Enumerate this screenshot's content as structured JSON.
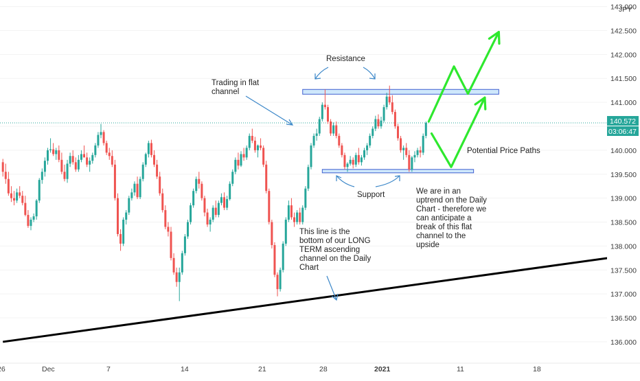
{
  "chart_data": {
    "type": "candlestick",
    "currency": "JPY",
    "y_ticks": [
      143.0,
      142.5,
      142.0,
      141.5,
      141.0,
      140.5,
      140.0,
      139.5,
      139.0,
      138.5,
      138.0,
      137.5,
      137.0,
      136.5,
      136.0
    ],
    "y_tick_labels": [
      "143.000",
      "142.500",
      "142.000",
      "141.500",
      "141.000",
      "",
      "140.000",
      "139.500",
      "139.000",
      "138.500",
      "138.000",
      "137.500",
      "137.000",
      "136.500",
      "136.000"
    ],
    "ylim": [
      135.87,
      143.08
    ],
    "x_ticks": [
      "26",
      "Dec",
      "7",
      "14",
      "21",
      "28",
      "2021",
      "11",
      "18"
    ],
    "current_price": "140.572",
    "countdown": "03:06:47",
    "colors": {
      "up": "#26a69a",
      "down": "#ef5350",
      "annotation_lines": "#3a86c8",
      "projection": "#2ee82e",
      "trendline": "#000000",
      "zone_fill": "#cfe8fb",
      "zone_border": "#3f5fd0"
    },
    "trendline": {
      "start": {
        "bar": 0,
        "price": 136.0
      },
      "end": {
        "bar": 216,
        "price": 137.75
      }
    },
    "resistance_zone": {
      "bar_from": 107,
      "bar_to": 177,
      "price_low": 141.17,
      "price_high": 141.27
    },
    "support_zone": {
      "bar_from": 114,
      "bar_to": 168,
      "price_low": 139.53,
      "price_high": 139.6
    },
    "projection_paths": [
      [
        {
          "bar": 152,
          "price": 140.6
        },
        {
          "bar": 161,
          "price": 141.75
        },
        {
          "bar": 166,
          "price": 141.18
        },
        {
          "bar": 177,
          "price": 142.47
        }
      ],
      [
        {
          "bar": 153,
          "price": 140.35
        },
        {
          "bar": 160,
          "price": 139.65
        },
        {
          "bar": 172,
          "price": 141.1
        }
      ]
    ],
    "annotations": {
      "resistance": "Resistance",
      "flat_channel": [
        "Trading in flat",
        "channel"
      ],
      "support": "Support",
      "potential_paths": "Potential Price Paths",
      "uptrend_note": [
        "We are in an",
        "uptrend on the Daily",
        "Chart - therefore we",
        "can anticipate a",
        "break of this flat",
        "channel to the",
        "upside"
      ],
      "bottom_note": [
        "This line is the",
        "bottom of our LONG",
        "TERM ascending",
        "channel on the Daily",
        "Chart"
      ]
    },
    "candles_ohlc": [
      [
        139.75,
        139.82,
        139.45,
        139.55
      ],
      [
        139.55,
        139.72,
        139.3,
        139.4
      ],
      [
        139.4,
        139.55,
        139.05,
        139.1
      ],
      [
        139.1,
        139.25,
        138.92,
        139.0
      ],
      [
        139.0,
        139.15,
        138.85,
        138.95
      ],
      [
        138.95,
        139.2,
        138.9,
        139.12
      ],
      [
        139.12,
        139.25,
        139.0,
        139.05
      ],
      [
        139.05,
        139.15,
        138.85,
        138.9
      ],
      [
        138.9,
        139.05,
        138.62,
        138.65
      ],
      [
        138.65,
        138.75,
        138.38,
        138.42
      ],
      [
        138.42,
        138.6,
        138.33,
        138.55
      ],
      [
        138.55,
        138.68,
        138.5,
        138.62
      ],
      [
        138.62,
        138.98,
        138.55,
        138.95
      ],
      [
        138.95,
        139.42,
        138.9,
        139.38
      ],
      [
        139.38,
        139.62,
        139.3,
        139.55
      ],
      [
        139.55,
        139.85,
        139.45,
        139.78
      ],
      [
        139.78,
        140.05,
        139.7,
        140.0
      ],
      [
        140.0,
        140.25,
        139.95,
        140.02
      ],
      [
        140.02,
        140.15,
        139.88,
        139.92
      ],
      [
        139.92,
        140.05,
        139.8,
        140.0
      ],
      [
        140.0,
        140.1,
        139.75,
        139.8
      ],
      [
        139.8,
        139.95,
        139.5,
        139.55
      ],
      [
        139.55,
        139.7,
        139.35,
        139.4
      ],
      [
        139.4,
        139.8,
        139.32,
        139.72
      ],
      [
        139.72,
        139.95,
        139.65,
        139.88
      ],
      [
        139.88,
        140.0,
        139.7,
        139.75
      ],
      [
        139.75,
        139.85,
        139.55,
        139.6
      ],
      [
        139.6,
        139.9,
        139.55,
        139.8
      ],
      [
        139.8,
        140.0,
        139.75,
        139.92
      ],
      [
        139.92,
        140.1,
        139.85,
        139.85
      ],
      [
        139.85,
        139.95,
        139.65,
        139.7
      ],
      [
        139.7,
        139.85,
        139.55,
        139.78
      ],
      [
        139.78,
        139.95,
        139.72,
        139.9
      ],
      [
        139.9,
        140.15,
        139.85,
        140.1
      ],
      [
        140.1,
        140.38,
        140.05,
        140.32
      ],
      [
        140.32,
        140.55,
        140.25,
        140.38
      ],
      [
        140.38,
        140.42,
        140.1,
        140.15
      ],
      [
        140.15,
        140.2,
        139.9,
        139.95
      ],
      [
        139.95,
        140.05,
        139.8,
        139.88
      ],
      [
        139.88,
        140.0,
        139.65,
        139.7
      ],
      [
        139.7,
        139.8,
        138.95,
        139.0
      ],
      [
        139.0,
        139.1,
        138.2,
        138.25
      ],
      [
        138.25,
        138.35,
        137.9,
        138.05
      ],
      [
        138.05,
        138.6,
        138.0,
        138.55
      ],
      [
        138.55,
        138.75,
        138.45,
        138.7
      ],
      [
        138.7,
        139.05,
        138.65,
        139.0
      ],
      [
        139.0,
        139.2,
        138.95,
        139.12
      ],
      [
        139.12,
        139.35,
        139.05,
        139.3
      ],
      [
        139.3,
        139.45,
        138.98,
        139.02
      ],
      [
        139.02,
        139.45,
        138.98,
        139.4
      ],
      [
        139.4,
        139.75,
        139.35,
        139.7
      ],
      [
        139.7,
        139.95,
        139.65,
        139.92
      ],
      [
        139.92,
        140.2,
        139.85,
        140.15
      ],
      [
        140.15,
        140.22,
        139.85,
        139.9
      ],
      [
        139.9,
        140.0,
        139.65,
        139.7
      ],
      [
        139.7,
        139.8,
        139.4,
        139.45
      ],
      [
        139.45,
        139.55,
        139.05,
        139.1
      ],
      [
        139.1,
        139.2,
        138.7,
        138.75
      ],
      [
        138.75,
        138.85,
        138.35,
        138.4
      ],
      [
        138.4,
        138.5,
        138.2,
        138.3
      ],
      [
        138.3,
        138.4,
        137.7,
        137.75
      ],
      [
        137.75,
        137.85,
        137.4,
        137.45
      ],
      [
        137.45,
        137.55,
        137.15,
        137.25
      ],
      [
        137.25,
        137.55,
        136.85,
        137.45
      ],
      [
        137.45,
        137.9,
        137.4,
        137.85
      ],
      [
        137.85,
        138.25,
        137.8,
        138.2
      ],
      [
        138.2,
        138.55,
        138.15,
        138.5
      ],
      [
        138.5,
        138.9,
        138.45,
        138.85
      ],
      [
        138.85,
        139.2,
        138.8,
        139.15
      ],
      [
        139.15,
        139.45,
        139.1,
        139.4
      ],
      [
        139.4,
        139.55,
        139.2,
        139.3
      ],
      [
        139.3,
        139.35,
        138.95,
        139.0
      ],
      [
        139.0,
        139.05,
        138.62,
        138.7
      ],
      [
        138.7,
        138.78,
        138.4,
        138.45
      ],
      [
        138.45,
        138.6,
        138.3,
        138.55
      ],
      [
        138.55,
        138.85,
        138.5,
        138.8
      ],
      [
        138.8,
        138.95,
        138.6,
        138.65
      ],
      [
        138.65,
        138.95,
        138.6,
        138.9
      ],
      [
        138.9,
        139.1,
        138.85,
        139.02
      ],
      [
        139.02,
        139.12,
        138.75,
        138.8
      ],
      [
        138.8,
        139.05,
        138.75,
        138.98
      ],
      [
        138.98,
        139.35,
        138.95,
        139.3
      ],
      [
        139.3,
        139.6,
        139.25,
        139.55
      ],
      [
        139.55,
        139.85,
        139.5,
        139.8
      ],
      [
        139.8,
        139.95,
        139.6,
        139.68
      ],
      [
        139.68,
        139.98,
        139.65,
        139.92
      ],
      [
        139.92,
        140.05,
        139.78,
        139.85
      ],
      [
        139.85,
        140.1,
        139.8,
        140.05
      ],
      [
        140.05,
        140.35,
        140.0,
        140.3
      ],
      [
        140.3,
        140.45,
        140.15,
        140.2
      ],
      [
        140.2,
        140.28,
        139.95,
        140.0
      ],
      [
        140.0,
        140.12,
        139.85,
        140.1
      ],
      [
        140.1,
        140.25,
        140.0,
        140.05
      ],
      [
        140.05,
        140.1,
        139.65,
        139.7
      ],
      [
        139.7,
        139.78,
        139.1,
        139.15
      ],
      [
        139.15,
        139.2,
        138.45,
        138.5
      ],
      [
        138.5,
        138.55,
        137.95,
        138.02
      ],
      [
        138.02,
        138.08,
        137.35,
        137.4
      ],
      [
        137.4,
        137.45,
        136.95,
        137.1
      ],
      [
        137.1,
        137.55,
        137.05,
        137.5
      ],
      [
        137.5,
        138.1,
        137.45,
        138.05
      ],
      [
        138.05,
        138.6,
        138.0,
        138.55
      ],
      [
        138.55,
        138.95,
        138.5,
        138.85
      ],
      [
        138.85,
        139.0,
        138.55,
        138.6
      ],
      [
        138.6,
        138.7,
        138.4,
        138.5
      ],
      [
        138.5,
        138.75,
        138.45,
        138.7
      ],
      [
        138.7,
        138.8,
        138.45,
        138.5
      ],
      [
        138.5,
        138.85,
        138.45,
        138.8
      ],
      [
        138.8,
        139.25,
        138.75,
        139.2
      ],
      [
        139.2,
        139.7,
        139.15,
        139.65
      ],
      [
        139.65,
        140.15,
        139.6,
        140.1
      ],
      [
        140.1,
        140.35,
        140.05,
        140.3
      ],
      [
        140.3,
        140.45,
        140.2,
        140.35
      ],
      [
        140.35,
        140.7,
        140.3,
        140.65
      ],
      [
        140.65,
        141.0,
        140.6,
        140.95
      ],
      [
        140.95,
        141.27,
        140.85,
        140.9
      ],
      [
        140.9,
        140.95,
        140.55,
        140.6
      ],
      [
        140.6,
        140.65,
        140.3,
        140.35
      ],
      [
        140.35,
        140.58,
        140.3,
        140.52
      ],
      [
        140.52,
        140.6,
        140.25,
        140.3
      ],
      [
        140.3,
        140.35,
        140.05,
        140.1
      ],
      [
        140.1,
        140.15,
        139.85,
        139.9
      ],
      [
        139.9,
        139.95,
        139.6,
        139.65
      ],
      [
        139.65,
        139.75,
        139.55,
        139.72
      ],
      [
        139.72,
        139.88,
        139.68,
        139.8
      ],
      [
        139.8,
        139.85,
        139.62,
        139.7
      ],
      [
        139.7,
        139.95,
        139.65,
        139.9
      ],
      [
        139.9,
        140.05,
        139.7,
        139.75
      ],
      [
        139.75,
        139.9,
        139.68,
        139.85
      ],
      [
        139.85,
        140.05,
        139.8,
        140.0
      ],
      [
        140.0,
        140.15,
        139.9,
        140.1
      ],
      [
        140.1,
        140.35,
        140.05,
        140.3
      ],
      [
        140.3,
        140.5,
        140.25,
        140.45
      ],
      [
        140.45,
        140.72,
        140.4,
        140.65
      ],
      [
        140.65,
        140.75,
        140.45,
        140.5
      ],
      [
        140.5,
        140.7,
        140.45,
        140.62
      ],
      [
        140.62,
        140.95,
        140.58,
        140.9
      ],
      [
        140.9,
        141.2,
        140.85,
        141.12
      ],
      [
        141.12,
        141.35,
        140.95,
        141.0
      ],
      [
        141.0,
        141.15,
        140.75,
        140.8
      ],
      [
        140.8,
        140.85,
        140.45,
        140.5
      ],
      [
        140.5,
        140.55,
        140.2,
        140.25
      ],
      [
        140.25,
        140.3,
        139.95,
        140.0
      ],
      [
        140.0,
        140.1,
        139.8,
        140.05
      ],
      [
        140.05,
        140.15,
        139.85,
        139.9
      ],
      [
        139.9,
        140.0,
        139.55,
        139.6
      ],
      [
        139.6,
        139.88,
        139.55,
        139.85
      ],
      [
        139.85,
        139.98,
        139.75,
        139.9
      ],
      [
        139.9,
        140.05,
        139.85,
        140.0
      ],
      [
        140.0,
        140.08,
        139.85,
        139.95
      ],
      [
        139.95,
        140.35,
        139.9,
        140.3
      ],
      [
        140.3,
        140.6,
        140.25,
        140.57
      ]
    ]
  }
}
